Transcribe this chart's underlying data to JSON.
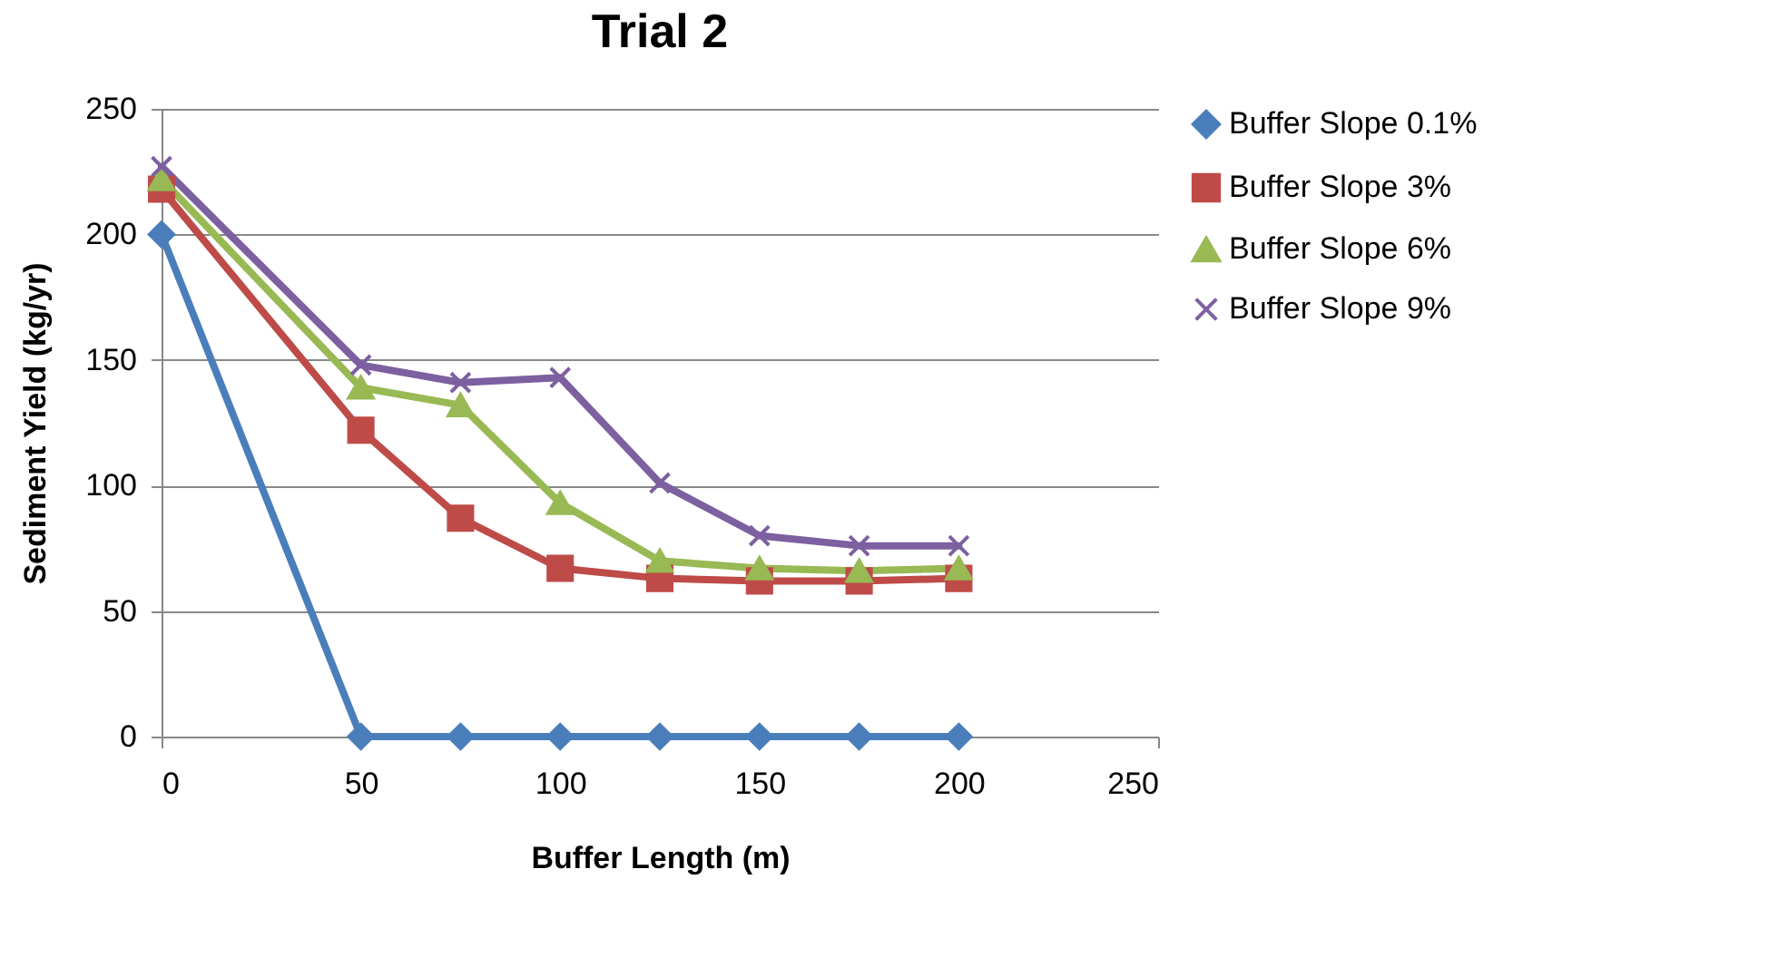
{
  "chart_data": {
    "type": "line",
    "title": "Trial 2",
    "xlabel": "Buffer Length (m)",
    "ylabel": "Sediment Yield (kg/yr)",
    "x": [
      0,
      50,
      75,
      100,
      125,
      150,
      175,
      200
    ],
    "series": [
      {
        "name": "Buffer Slope 0.1%",
        "color": "#4a7ebb",
        "marker": "diamond",
        "values": [
          200,
          0,
          0,
          0,
          0,
          0,
          0,
          0
        ]
      },
      {
        "name": "Buffer Slope 3%",
        "color": "#be4b48",
        "marker": "square",
        "values": [
          218,
          122,
          87,
          67,
          63,
          62,
          62,
          63
        ]
      },
      {
        "name": "Buffer Slope 6%",
        "color": "#98b954",
        "marker": "triangle",
        "values": [
          222,
          139,
          132,
          93,
          70,
          67,
          66,
          67
        ]
      },
      {
        "name": "Buffer Slope 9%",
        "color": "#7d60a0",
        "marker": "cross",
        "values": [
          227,
          148,
          141,
          143,
          101,
          80,
          76,
          76
        ]
      }
    ],
    "xlim": [
      0,
      250
    ],
    "xticks": [
      0,
      50,
      100,
      150,
      200,
      250
    ],
    "ylim": [
      0,
      250
    ],
    "yticks": [
      0,
      50,
      100,
      150,
      200,
      250
    ],
    "grid": "y",
    "legend": "right",
    "line_style": "solid"
  }
}
